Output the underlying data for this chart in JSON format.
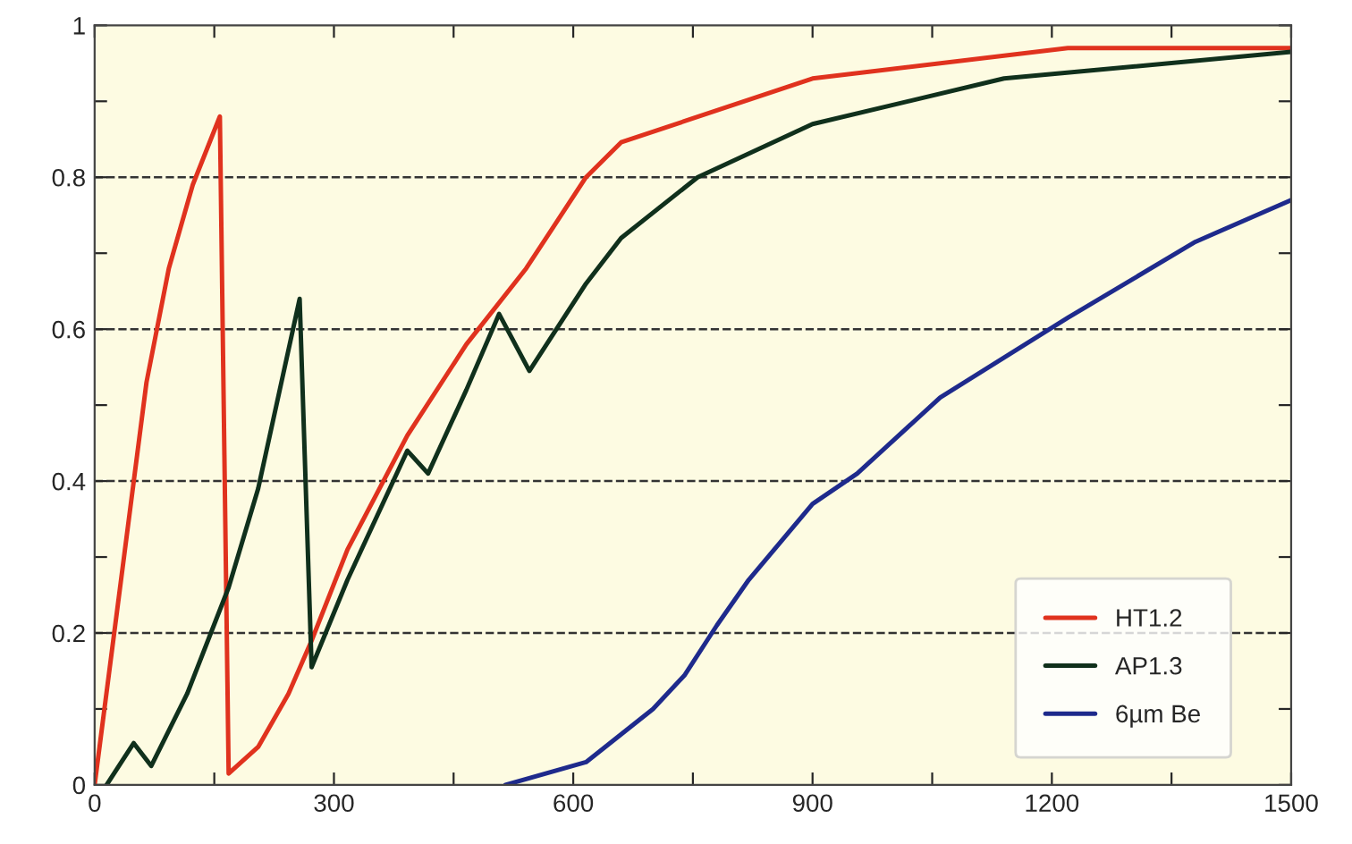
{
  "chart_data": {
    "type": "line",
    "series": [
      {
        "name": "HT1.2",
        "color": "#e0321e",
        "x": [
          0,
          65,
          93,
          123,
          157,
          168,
          205,
          243,
          272,
          317,
          392,
          466,
          541,
          616,
          660,
          900,
          1220,
          1500
        ],
        "values": [
          0,
          0.53,
          0.68,
          0.79,
          0.88,
          0.015,
          0.05,
          0.12,
          0.19,
          0.31,
          0.46,
          0.58,
          0.68,
          0.8,
          0.846,
          0.93,
          0.97,
          0.97
        ]
      },
      {
        "name": "AP1.3",
        "color": "#10301c",
        "x": [
          15,
          49,
          71,
          116,
          168,
          205,
          257,
          272,
          317,
          392,
          418,
          466,
          507,
          545,
          616,
          660,
          756,
          900,
          1140,
          1500
        ],
        "values": [
          0,
          0.055,
          0.025,
          0.12,
          0.26,
          0.39,
          0.64,
          0.155,
          0.27,
          0.44,
          0.41,
          0.52,
          0.62,
          0.545,
          0.66,
          0.72,
          0.8,
          0.87,
          0.93,
          0.965
        ]
      },
      {
        "name": "6µm Be",
        "color": "#1e2a8c",
        "x": [
          515,
          616,
          700,
          740,
          780,
          820,
          900,
          956,
          1060,
          1220,
          1380,
          1500
        ],
        "values": [
          0,
          0.03,
          0.1,
          0.145,
          0.21,
          0.27,
          0.37,
          0.41,
          0.51,
          0.615,
          0.715,
          0.77
        ]
      }
    ],
    "xlim": [
      0,
      1500
    ],
    "xticks": [
      0,
      {
        "value": 150,
        "label": null
      },
      300,
      {
        "value": 450,
        "label": null
      },
      600,
      {
        "value": 750,
        "label": null
      },
      900,
      {
        "value": 1050,
        "label": null
      },
      1200,
      {
        "value": 1350,
        "label": null
      },
      1500
    ],
    "ylim": [
      0,
      1
    ],
    "yticks": [
      0,
      {
        "value": 0.1,
        "label": null
      },
      0.2,
      {
        "value": 0.3,
        "label": null
      },
      0.4,
      {
        "value": 0.5,
        "label": null
      },
      0.6,
      {
        "value": 0.7,
        "label": null
      },
      0.8,
      {
        "value": 0.9,
        "label": null
      },
      1
    ],
    "ref_lines": [
      {
        "axis": "y",
        "value": 0.2,
        "line_style": "dashed",
        "color": "#333333"
      },
      {
        "axis": "y",
        "value": 0.4,
        "line_style": "dashed",
        "color": "#333333"
      },
      {
        "axis": "y",
        "value": 0.6,
        "line_style": "dashed",
        "color": "#333333"
      },
      {
        "axis": "y",
        "value": 0.8,
        "line_style": "dashed",
        "color": "#333333"
      }
    ],
    "grid": false,
    "legend": "bottom right",
    "line_style": "solid",
    "marker": "none"
  }
}
